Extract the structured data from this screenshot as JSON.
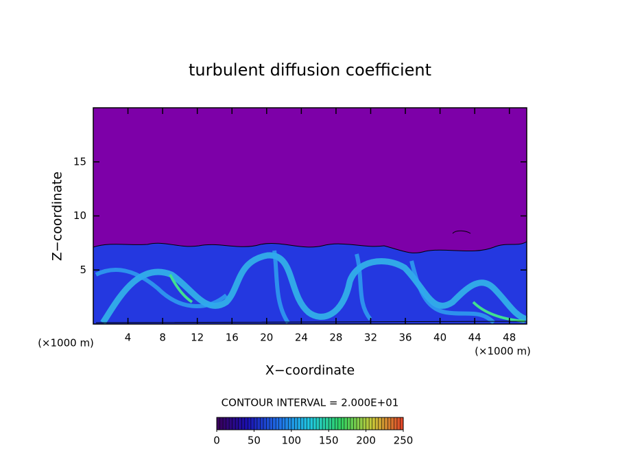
{
  "chart_data": {
    "type": "contour",
    "title": "turbulent diffusion coefficient",
    "x_label": "X−coordinate",
    "y_label": "Z−coordinate",
    "x_unit": "(×1000 m)",
    "y_unit": "(×1000 m)",
    "xlim": [
      0,
      50
    ],
    "ylim": [
      0,
      20
    ],
    "xticks": [
      4,
      8,
      12,
      16,
      20,
      24,
      28,
      32,
      36,
      40,
      44,
      48
    ],
    "yticks": [
      5,
      10,
      15
    ],
    "contour_interval_label": "CONTOUR INTERVAL = 2.000E+01",
    "colorbar": {
      "lim": [
        0,
        250
      ],
      "ticks": [
        0,
        50,
        100,
        150,
        200,
        250
      ],
      "colors": [
        "#3a0058",
        "#1a10b0",
        "#1f70e8",
        "#20c8e0",
        "#30d060",
        "#c8c838",
        "#e04028"
      ]
    }
  }
}
